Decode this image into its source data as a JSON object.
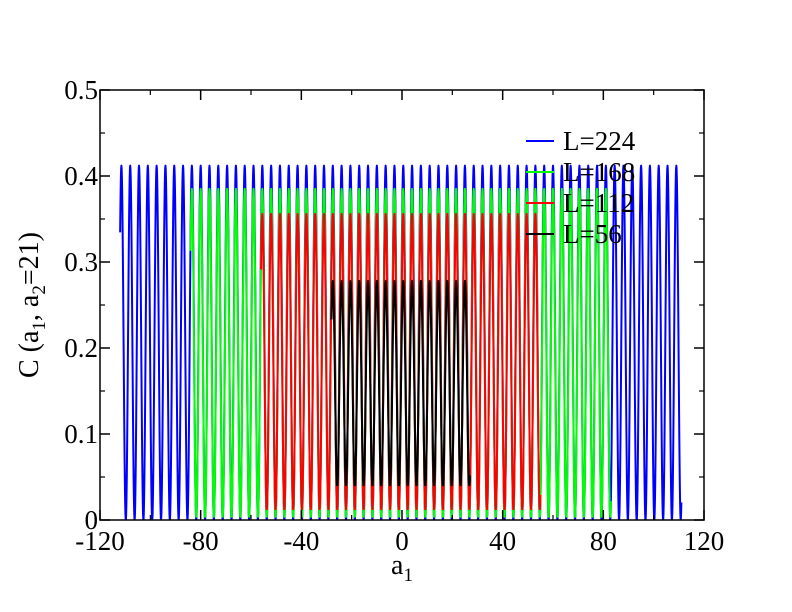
{
  "chart_data": {
    "type": "line",
    "title": "",
    "xlabel": "a",
    "xlabel_sub": "1",
    "ylabel": {
      "parts": [
        {
          "text": "C (a",
          "sub": false
        },
        {
          "text": "1",
          "sub": true
        },
        {
          "text": ", a",
          "sub": false
        },
        {
          "text": "2",
          "sub": true
        },
        {
          "text": "=21)",
          "sub": false
        }
      ]
    },
    "xlim": [
      -120,
      120
    ],
    "ylim": [
      0,
      0.5
    ],
    "xticks": [
      -120,
      -80,
      -40,
      0,
      40,
      80,
      120
    ],
    "xtick_labels": [
      "-120",
      "-80",
      "-40",
      "0",
      "40",
      "80",
      "120"
    ],
    "yticks": [
      0,
      0.1,
      0.2,
      0.3,
      0.4,
      0.5
    ],
    "ytick_labels": [
      "0",
      "0.1",
      "0.2",
      "0.3",
      "0.4",
      "0.5"
    ],
    "grid": false,
    "legend_position": "top-right",
    "oscillation_period": 7,
    "series": [
      {
        "name": "L=224",
        "color": "#0000ff",
        "x_start": -112,
        "x_end": 111,
        "peak": 0.412,
        "trough": 0.0
      },
      {
        "name": "L=168",
        "color": "#00ff00",
        "x_start": -84,
        "x_end": 83,
        "peak": 0.385,
        "trough": 0.003
      },
      {
        "name": "L=112",
        "color": "#ff0000",
        "x_start": -56,
        "x_end": 55,
        "peak": 0.356,
        "trough": 0.012
      },
      {
        "name": "L=56",
        "color": "#000000",
        "x_start": -28,
        "x_end": 27,
        "peak": 0.278,
        "trough": 0.04
      }
    ]
  }
}
